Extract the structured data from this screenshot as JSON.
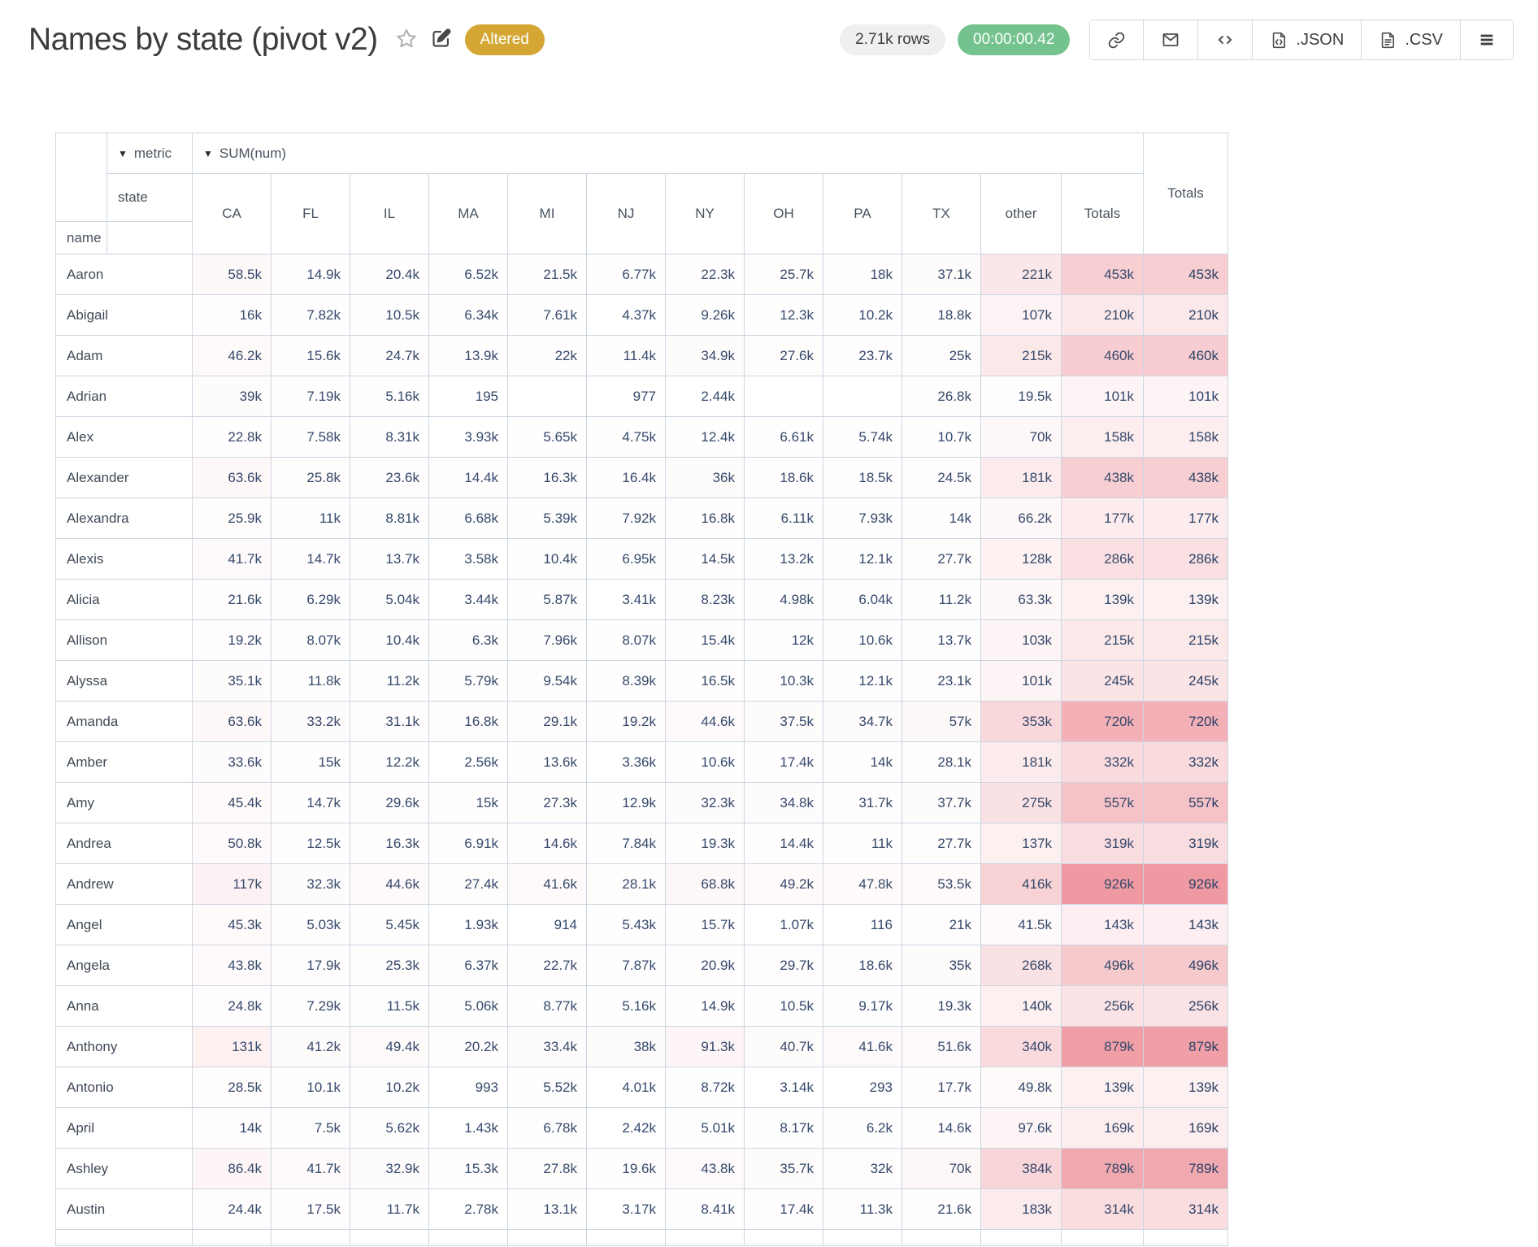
{
  "header": {
    "title": "Names by state (pivot v2)",
    "altered_badge": "Altered",
    "rows_badge": "2.71k rows",
    "timer": "00:00:00.42",
    "export_json_label": ".JSON",
    "export_csv_label": ".CSV",
    "icons": [
      "star-icon",
      "edit-icon",
      "link-icon",
      "email-icon",
      "embed-code-icon",
      "json-file-icon",
      "csv-file-icon",
      "menu-icon"
    ]
  },
  "colors": {
    "altered_bg": "#d4a735",
    "rows_pill_bg": "#efefef",
    "timer_bg": "#74c28d",
    "heat_color_max": "#ef9aa2",
    "table_border": "#ccd6e2",
    "number_text": "#35496b"
  },
  "pivot": {
    "dropdown_glyph": "▼",
    "metric_label": "metric",
    "values_label": "SUM(num)",
    "row_dim_label": "name",
    "col_dim_label": "state",
    "right_total_label": "Totals",
    "heat_max": 926000,
    "columns": [
      "CA",
      "FL",
      "IL",
      "MA",
      "MI",
      "NJ",
      "NY",
      "OH",
      "PA",
      "TX",
      "other",
      "Totals"
    ],
    "rows": [
      {
        "name": "Aaron",
        "cells": [
          "58.5k",
          "14.9k",
          "20.4k",
          "6.52k",
          "21.5k",
          "6.77k",
          "22.3k",
          "25.7k",
          "18k",
          "37.1k",
          "221k",
          "453k"
        ],
        "total": "453k"
      },
      {
        "name": "Abigail",
        "cells": [
          "16k",
          "7.82k",
          "10.5k",
          "6.34k",
          "7.61k",
          "4.37k",
          "9.26k",
          "12.3k",
          "10.2k",
          "18.8k",
          "107k",
          "210k"
        ],
        "total": "210k"
      },
      {
        "name": "Adam",
        "cells": [
          "46.2k",
          "15.6k",
          "24.7k",
          "13.9k",
          "22k",
          "11.4k",
          "34.9k",
          "27.6k",
          "23.7k",
          "25k",
          "215k",
          "460k"
        ],
        "total": "460k"
      },
      {
        "name": "Adrian",
        "cells": [
          "39k",
          "7.19k",
          "5.16k",
          "195",
          "",
          "977",
          "2.44k",
          "",
          "",
          "26.8k",
          "19.5k",
          "101k"
        ],
        "total": "101k"
      },
      {
        "name": "Alex",
        "cells": [
          "22.8k",
          "7.58k",
          "8.31k",
          "3.93k",
          "5.65k",
          "4.75k",
          "12.4k",
          "6.61k",
          "5.74k",
          "10.7k",
          "70k",
          "158k"
        ],
        "total": "158k"
      },
      {
        "name": "Alexander",
        "cells": [
          "63.6k",
          "25.8k",
          "23.6k",
          "14.4k",
          "16.3k",
          "16.4k",
          "36k",
          "18.6k",
          "18.5k",
          "24.5k",
          "181k",
          "438k"
        ],
        "total": "438k"
      },
      {
        "name": "Alexandra",
        "cells": [
          "25.9k",
          "11k",
          "8.81k",
          "6.68k",
          "5.39k",
          "7.92k",
          "16.8k",
          "6.11k",
          "7.93k",
          "14k",
          "66.2k",
          "177k"
        ],
        "total": "177k"
      },
      {
        "name": "Alexis",
        "cells": [
          "41.7k",
          "14.7k",
          "13.7k",
          "3.58k",
          "10.4k",
          "6.95k",
          "14.5k",
          "13.2k",
          "12.1k",
          "27.7k",
          "128k",
          "286k"
        ],
        "total": "286k"
      },
      {
        "name": "Alicia",
        "cells": [
          "21.6k",
          "6.29k",
          "5.04k",
          "3.44k",
          "5.87k",
          "3.41k",
          "8.23k",
          "4.98k",
          "6.04k",
          "11.2k",
          "63.3k",
          "139k"
        ],
        "total": "139k"
      },
      {
        "name": "Allison",
        "cells": [
          "19.2k",
          "8.07k",
          "10.4k",
          "6.3k",
          "7.96k",
          "8.07k",
          "15.4k",
          "12k",
          "10.6k",
          "13.7k",
          "103k",
          "215k"
        ],
        "total": "215k"
      },
      {
        "name": "Alyssa",
        "cells": [
          "35.1k",
          "11.8k",
          "11.2k",
          "5.79k",
          "9.54k",
          "8.39k",
          "16.5k",
          "10.3k",
          "12.1k",
          "23.1k",
          "101k",
          "245k"
        ],
        "total": "245k"
      },
      {
        "name": "Amanda",
        "cells": [
          "63.6k",
          "33.2k",
          "31.1k",
          "16.8k",
          "29.1k",
          "19.2k",
          "44.6k",
          "37.5k",
          "34.7k",
          "57k",
          "353k",
          "720k"
        ],
        "total": "720k"
      },
      {
        "name": "Amber",
        "cells": [
          "33.6k",
          "15k",
          "12.2k",
          "2.56k",
          "13.6k",
          "3.36k",
          "10.6k",
          "17.4k",
          "14k",
          "28.1k",
          "181k",
          "332k"
        ],
        "total": "332k"
      },
      {
        "name": "Amy",
        "cells": [
          "45.4k",
          "14.7k",
          "29.6k",
          "15k",
          "27.3k",
          "12.9k",
          "32.3k",
          "34.8k",
          "31.7k",
          "37.7k",
          "275k",
          "557k"
        ],
        "total": "557k"
      },
      {
        "name": "Andrea",
        "cells": [
          "50.8k",
          "12.5k",
          "16.3k",
          "6.91k",
          "14.6k",
          "7.84k",
          "19.3k",
          "14.4k",
          "11k",
          "27.7k",
          "137k",
          "319k"
        ],
        "total": "319k"
      },
      {
        "name": "Andrew",
        "cells": [
          "117k",
          "32.3k",
          "44.6k",
          "27.4k",
          "41.6k",
          "28.1k",
          "68.8k",
          "49.2k",
          "47.8k",
          "53.5k",
          "416k",
          "926k"
        ],
        "total": "926k"
      },
      {
        "name": "Angel",
        "cells": [
          "45.3k",
          "5.03k",
          "5.45k",
          "1.93k",
          "914",
          "5.43k",
          "15.7k",
          "1.07k",
          "116",
          "21k",
          "41.5k",
          "143k"
        ],
        "total": "143k"
      },
      {
        "name": "Angela",
        "cells": [
          "43.8k",
          "17.9k",
          "25.3k",
          "6.37k",
          "22.7k",
          "7.87k",
          "20.9k",
          "29.7k",
          "18.6k",
          "35k",
          "268k",
          "496k"
        ],
        "total": "496k"
      },
      {
        "name": "Anna",
        "cells": [
          "24.8k",
          "7.29k",
          "11.5k",
          "5.06k",
          "8.77k",
          "5.16k",
          "14.9k",
          "10.5k",
          "9.17k",
          "19.3k",
          "140k",
          "256k"
        ],
        "total": "256k"
      },
      {
        "name": "Anthony",
        "cells": [
          "131k",
          "41.2k",
          "49.4k",
          "20.2k",
          "33.4k",
          "38k",
          "91.3k",
          "40.7k",
          "41.6k",
          "51.6k",
          "340k",
          "879k"
        ],
        "total": "879k"
      },
      {
        "name": "Antonio",
        "cells": [
          "28.5k",
          "10.1k",
          "10.2k",
          "993",
          "5.52k",
          "4.01k",
          "8.72k",
          "3.14k",
          "293",
          "17.7k",
          "49.8k",
          "139k"
        ],
        "total": "139k"
      },
      {
        "name": "April",
        "cells": [
          "14k",
          "7.5k",
          "5.62k",
          "1.43k",
          "6.78k",
          "2.42k",
          "5.01k",
          "8.17k",
          "6.2k",
          "14.6k",
          "97.6k",
          "169k"
        ],
        "total": "169k"
      },
      {
        "name": "Ashley",
        "cells": [
          "86.4k",
          "41.7k",
          "32.9k",
          "15.3k",
          "27.8k",
          "19.6k",
          "43.8k",
          "35.7k",
          "32k",
          "70k",
          "384k",
          "789k"
        ],
        "total": "789k"
      },
      {
        "name": "Austin",
        "cells": [
          "24.4k",
          "17.5k",
          "11.7k",
          "2.78k",
          "13.1k",
          "3.17k",
          "8.41k",
          "17.4k",
          "11.3k",
          "21.6k",
          "183k",
          "314k"
        ],
        "total": "314k"
      }
    ]
  }
}
